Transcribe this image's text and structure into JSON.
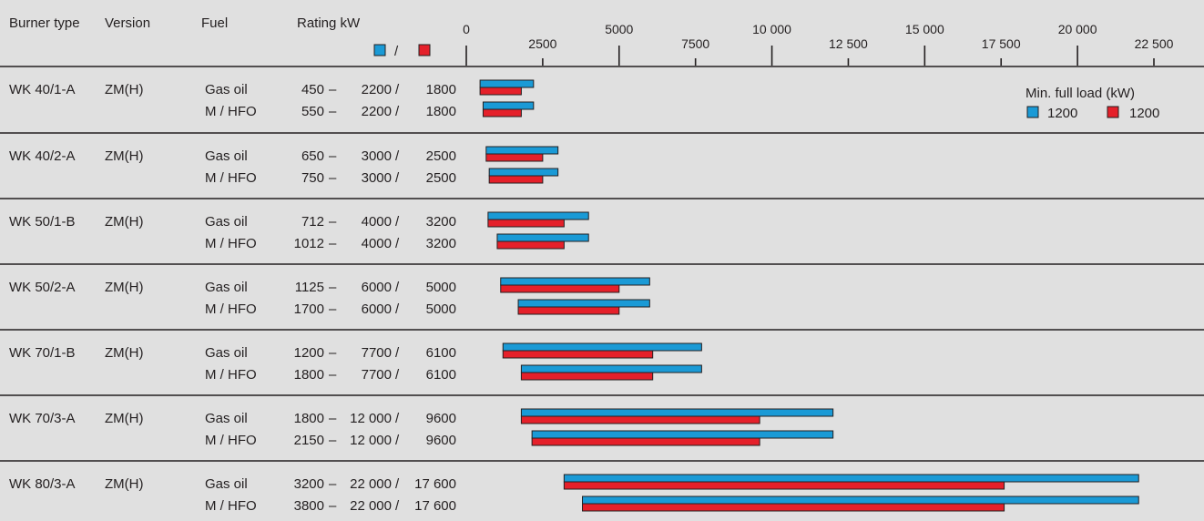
{
  "chart_data": {
    "type": "bar",
    "columns": {
      "burner_type": "Burner type",
      "version": "Version",
      "fuel": "Fuel",
      "rating": "Rating kW"
    },
    "rating_legend_sep": "/",
    "x_ticks": [
      "0",
      "2500",
      "5000",
      "7500",
      "10 000",
      "12 500",
      "15 000",
      "17 500",
      "20 000",
      "22 500"
    ],
    "x_tick_values": [
      0,
      2500,
      5000,
      7500,
      10000,
      12500,
      15000,
      17500,
      20000,
      22500
    ],
    "xlim": [
      0,
      22500
    ],
    "series_colors": {
      "blue": "#1a9ad6",
      "red": "#e5202a"
    },
    "min_full_load": {
      "title": "Min. full load (kW)",
      "blue_value": "1200",
      "red_value": "1200"
    },
    "groups": [
      {
        "burner": "WK 40/1-A",
        "version": "ZM(H)",
        "rows": [
          {
            "fuel": "Gas oil",
            "rating_min": "450",
            "rating_max": "2200",
            "rating_red": "1800",
            "bar_min": 450,
            "bar_blue_max": 2200,
            "bar_red_max": 1800
          },
          {
            "fuel": "M / HFO",
            "rating_min": "550",
            "rating_max": "2200",
            "rating_red": "1800",
            "bar_min": 550,
            "bar_blue_max": 2200,
            "bar_red_max": 1800
          }
        ]
      },
      {
        "burner": "WK 40/2-A",
        "version": "ZM(H)",
        "rows": [
          {
            "fuel": "Gas oil",
            "rating_min": "650",
            "rating_max": "3000",
            "rating_red": "2500",
            "bar_min": 650,
            "bar_blue_max": 3000,
            "bar_red_max": 2500
          },
          {
            "fuel": "M / HFO",
            "rating_min": "750",
            "rating_max": "3000",
            "rating_red": "2500",
            "bar_min": 750,
            "bar_blue_max": 3000,
            "bar_red_max": 2500
          }
        ]
      },
      {
        "burner": "WK 50/1-B",
        "version": "ZM(H)",
        "rows": [
          {
            "fuel": "Gas oil",
            "rating_min": "712",
            "rating_max": "4000",
            "rating_red": "3200",
            "bar_min": 712,
            "bar_blue_max": 4000,
            "bar_red_max": 3200
          },
          {
            "fuel": "M / HFO",
            "rating_min": "1012",
            "rating_max": "4000",
            "rating_red": "3200",
            "bar_min": 1012,
            "bar_blue_max": 4000,
            "bar_red_max": 3200
          }
        ]
      },
      {
        "burner": "WK 50/2-A",
        "version": "ZM(H)",
        "rows": [
          {
            "fuel": "Gas oil",
            "rating_min": "1125",
            "rating_max": "6000",
            "rating_red": "5000",
            "bar_min": 1125,
            "bar_blue_max": 6000,
            "bar_red_max": 5000
          },
          {
            "fuel": "M / HFO",
            "rating_min": "1700",
            "rating_max": "6000",
            "rating_red": "5000",
            "bar_min": 1700,
            "bar_blue_max": 6000,
            "bar_red_max": 5000
          }
        ]
      },
      {
        "burner": "WK 70/1-B",
        "version": "ZM(H)",
        "rows": [
          {
            "fuel": "Gas oil",
            "rating_min": "1200",
            "rating_max": "7700",
            "rating_red": "6100",
            "bar_min": 1200,
            "bar_blue_max": 7700,
            "bar_red_max": 6100
          },
          {
            "fuel": "M / HFO",
            "rating_min": "1800",
            "rating_max": "7700",
            "rating_red": "6100",
            "bar_min": 1800,
            "bar_blue_max": 7700,
            "bar_red_max": 6100
          }
        ]
      },
      {
        "burner": "WK 70/3-A",
        "version": "ZM(H)",
        "rows": [
          {
            "fuel": "Gas oil",
            "rating_min": "1800",
            "rating_max": "12 000",
            "rating_red": "9600",
            "bar_min": 1800,
            "bar_blue_max": 12000,
            "bar_red_max": 9600
          },
          {
            "fuel": "M / HFO",
            "rating_min": "2150",
            "rating_max": "12 000",
            "rating_red": "9600",
            "bar_min": 2150,
            "bar_blue_max": 12000,
            "bar_red_max": 9600
          }
        ]
      },
      {
        "burner": "WK 80/3-A",
        "version": "ZM(H)",
        "rows": [
          {
            "fuel": "Gas oil",
            "rating_min": "3200",
            "rating_max": "22 000",
            "rating_red": "17 600",
            "bar_min": 3200,
            "bar_blue_max": 22000,
            "bar_red_max": 17600
          },
          {
            "fuel": "M / HFO",
            "rating_min": "3800",
            "rating_max": "22 000",
            "rating_red": "17 600",
            "bar_min": 3800,
            "bar_blue_max": 22000,
            "bar_red_max": 17600
          }
        ]
      }
    ]
  }
}
